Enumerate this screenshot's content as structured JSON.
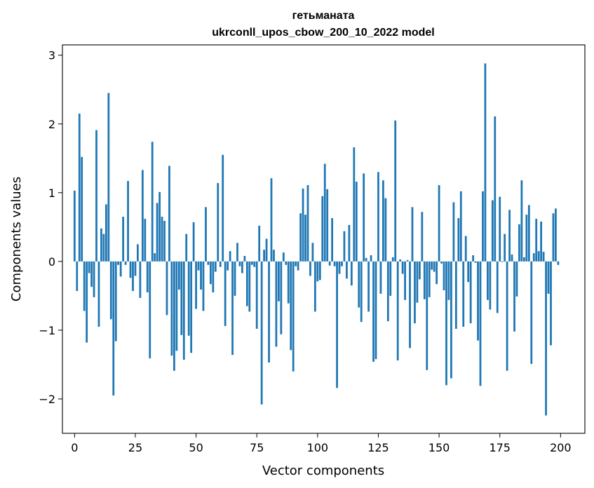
{
  "chart_data": {
    "type": "bar",
    "title": "гетьманата",
    "subtitle": "ukrconll_upos_cbow_200_10_2022 model",
    "xlabel": "Vector components",
    "ylabel": "Components values",
    "xlim": [
      -5,
      210
    ],
    "ylim": [
      -2.5,
      3.15
    ],
    "xticks": [
      0,
      25,
      50,
      75,
      100,
      125,
      150,
      175,
      200
    ],
    "yticks": [
      -2,
      -1,
      0,
      1,
      2,
      3
    ],
    "grid": false,
    "bar_color": "#1f77b4",
    "x": [
      0,
      1,
      2,
      3,
      4,
      5,
      6,
      7,
      8,
      9,
      10,
      11,
      12,
      13,
      14,
      15,
      16,
      17,
      18,
      19,
      20,
      21,
      22,
      23,
      24,
      25,
      26,
      27,
      28,
      29,
      30,
      31,
      32,
      33,
      34,
      35,
      36,
      37,
      38,
      39,
      40,
      41,
      42,
      43,
      44,
      45,
      46,
      47,
      48,
      49,
      50,
      51,
      52,
      53,
      54,
      55,
      56,
      57,
      58,
      59,
      60,
      61,
      62,
      63,
      64,
      65,
      66,
      67,
      68,
      69,
      70,
      71,
      72,
      73,
      74,
      75,
      76,
      77,
      78,
      79,
      80,
      81,
      82,
      83,
      84,
      85,
      86,
      87,
      88,
      89,
      90,
      91,
      92,
      93,
      94,
      95,
      96,
      97,
      98,
      99,
      100,
      101,
      102,
      103,
      104,
      105,
      106,
      107,
      108,
      109,
      110,
      111,
      112,
      113,
      114,
      115,
      116,
      117,
      118,
      119,
      120,
      121,
      122,
      123,
      124,
      125,
      126,
      127,
      128,
      129,
      130,
      131,
      132,
      133,
      134,
      135,
      136,
      137,
      138,
      139,
      140,
      141,
      142,
      143,
      144,
      145,
      146,
      147,
      148,
      149,
      150,
      151,
      152,
      153,
      154,
      155,
      156,
      157,
      158,
      159,
      160,
      161,
      162,
      163,
      164,
      165,
      166,
      167,
      168,
      169,
      170,
      171,
      172,
      173,
      174,
      175,
      176,
      177,
      178,
      179,
      180,
      181,
      182,
      183,
      184,
      185,
      186,
      187,
      188,
      189,
      190,
      191,
      192,
      193,
      194,
      195,
      196,
      197,
      198,
      199
    ],
    "values": [
      1.03,
      -0.43,
      2.15,
      1.52,
      -0.72,
      -1.18,
      -0.17,
      -0.37,
      -0.52,
      1.91,
      -0.95,
      0.48,
      0.4,
      0.83,
      2.45,
      -0.84,
      -1.95,
      -1.16,
      -0.05,
      -0.22,
      0.65,
      -0.05,
      1.17,
      -0.24,
      -0.43,
      -0.21,
      0.25,
      -0.53,
      1.33,
      0.62,
      -0.45,
      -1.41,
      1.74,
      0.12,
      0.85,
      1.01,
      0.65,
      0.59,
      -0.78,
      1.39,
      -1.37,
      -1.59,
      -1.3,
      -0.41,
      -1.07,
      -1.43,
      0.4,
      -1.08,
      -1.33,
      0.57,
      -0.69,
      -0.13,
      -0.41,
      -0.72,
      0.79,
      -0.05,
      -0.33,
      -0.45,
      -0.15,
      1.14,
      -0.08,
      1.55,
      -0.94,
      -0.13,
      0.15,
      -1.36,
      -0.5,
      0.27,
      -0.07,
      -0.17,
      0.08,
      -0.65,
      -0.73,
      -0.05,
      -0.08,
      -0.98,
      0.52,
      -2.08,
      0.17,
      0.33,
      -1.47,
      1.21,
      0.17,
      -1.24,
      -0.58,
      -1.06,
      0.13,
      -0.05,
      -0.61,
      -1.29,
      -1.6,
      -0.07,
      -0.13,
      0.7,
      1.06,
      0.68,
      1.11,
      -0.21,
      0.27,
      -0.73,
      -0.29,
      -0.27,
      0.95,
      1.42,
      1.05,
      -0.06,
      0.63,
      -0.07,
      -1.84,
      -0.18,
      -0.07,
      0.44,
      -0.25,
      0.53,
      -0.35,
      1.66,
      1.16,
      -0.67,
      -0.88,
      1.28,
      0.05,
      -0.73,
      0.09,
      -1.46,
      -1.42,
      1.3,
      -0.47,
      1.18,
      0.92,
      -0.87,
      -0.5,
      0.06,
      2.05,
      -1.44,
      0.03,
      -0.18,
      -0.56,
      0.02,
      -1.26,
      0.79,
      -0.9,
      -0.6,
      -0.26,
      0.72,
      -0.55,
      -1.58,
      -0.52,
      -0.12,
      -0.15,
      -0.33,
      1.11,
      -0.03,
      -0.42,
      -1.8,
      -0.56,
      -1.7,
      0.86,
      -0.98,
      0.63,
      1.02,
      -0.95,
      0.37,
      -0.3,
      -0.9,
      0.09,
      -0.02,
      -1.15,
      -1.81,
      1.02,
      2.88,
      -0.56,
      -0.7,
      0.89,
      2.11,
      -0.75,
      0.94,
      -0.01,
      0.4,
      -1.59,
      0.75,
      0.1,
      -1.02,
      -0.51,
      0.54,
      1.18,
      0.06,
      0.68,
      0.82,
      -1.49,
      0.12,
      0.62,
      0.15,
      0.58,
      0.14,
      -2.24,
      -0.47,
      -1.22,
      0.7,
      0.77,
      -0.05
    ]
  }
}
